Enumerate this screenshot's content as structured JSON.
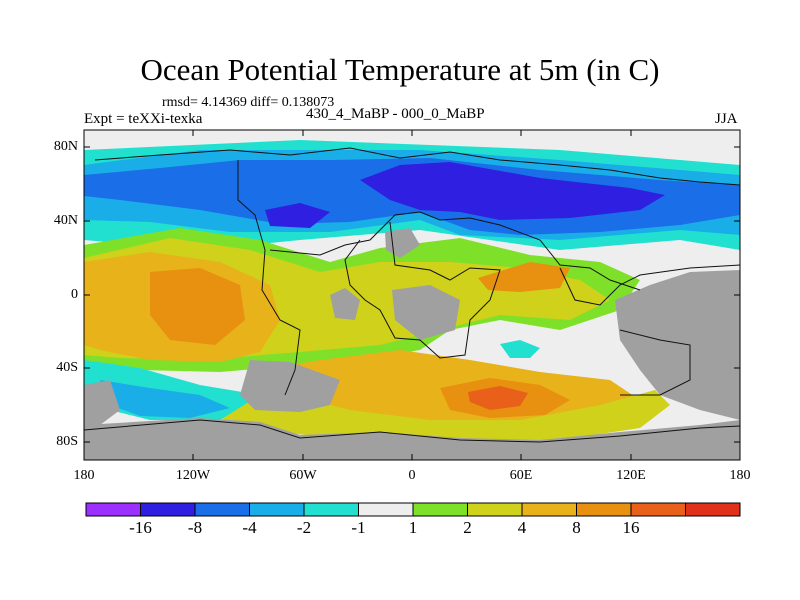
{
  "title": "Ocean Potential Temperature at 5m (in C)",
  "stats": "rmsd= 4.14369 diff= 0.138073",
  "experiment": "Expt = teXXi-texka",
  "subtitle": "430_4_MaBP - 000_0_MaBP",
  "season": "JJA",
  "lat_labels": [
    "80N",
    "40N",
    "0",
    "40S",
    "80S"
  ],
  "lon_labels": [
    "180",
    "120W",
    "60W",
    "0",
    "60E",
    "120E",
    "180"
  ],
  "colorbar": {
    "colors": [
      "#9b30ff",
      "#2f1fe0",
      "#1a6fe8",
      "#1aaee8",
      "#22e0d0",
      "#eeeeee",
      "#7fe02a",
      "#cfd11a",
      "#e8b21a",
      "#e8900f",
      "#e8601a",
      "#e0321a"
    ],
    "labels": [
      "-16",
      "-8",
      "-4",
      "-2",
      "-1",
      "1",
      "2",
      "4",
      "8",
      "16"
    ]
  },
  "colors": {
    "land": "#a0a0a0",
    "neutral": "#eeeeee",
    "deep_cold": "#2f1fe0",
    "cold": "#1a6fe8",
    "cool": "#1aaee8",
    "cyan": "#22e0d0",
    "green": "#7fe02a",
    "yellow": "#cfd11a",
    "orange": "#e8b21a",
    "dark_orange": "#e8900f",
    "red_orange": "#e8601a"
  }
}
